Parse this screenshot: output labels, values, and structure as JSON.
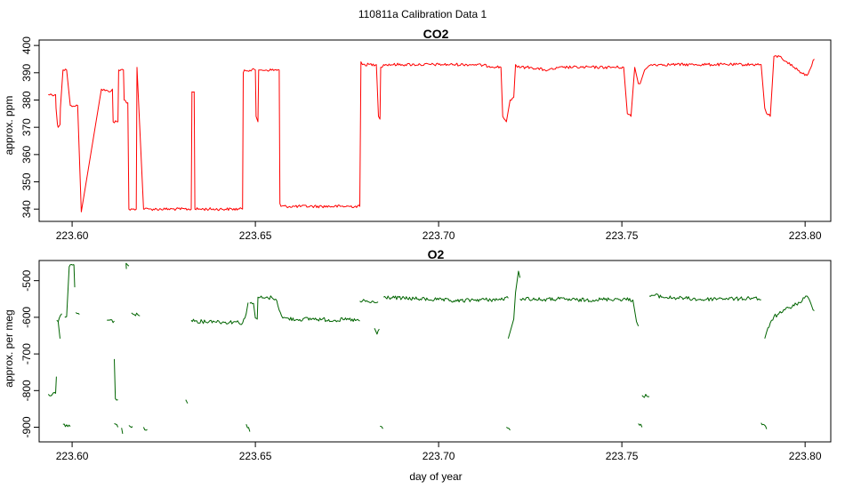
{
  "title": "110811a   Calibration Data 1",
  "chart_data": [
    {
      "type": "line",
      "title": "CO2",
      "xlabel": "",
      "ylabel": "approx. ppm",
      "xlim": [
        223.591,
        223.807
      ],
      "ylim": [
        335.5,
        402
      ],
      "xticks": [
        223.6,
        223.65,
        223.7,
        223.75,
        223.8
      ],
      "xtick_labels": [
        "223.60",
        "223.65",
        "223.70",
        "223.75",
        "223.80"
      ],
      "yticks": [
        340,
        350,
        360,
        370,
        380,
        390,
        400
      ],
      "ytick_labels": [
        "340",
        "350",
        "360",
        "370",
        "380",
        "390",
        "400"
      ],
      "grid": false,
      "legend": "none",
      "color": "#ff0000",
      "series": [
        {
          "x": [
            223.5935,
            223.5955,
            223.5956,
            223.596,
            223.5962,
            223.5967,
            223.5968,
            223.5975,
            223.5976,
            223.5985,
            223.5995,
            223.5997,
            223.6015,
            223.6025,
            223.608,
            223.61,
            223.611,
            223.6112,
            223.6125,
            223.6127,
            223.614,
            223.6142,
            223.6152,
            223.6155,
            223.6165,
            223.6175,
            223.6177,
            223.6195,
            223.6197,
            223.621,
            223.6325,
            223.6327,
            223.6333,
            223.6335,
            223.6465,
            223.6467,
            223.647,
            223.65,
            223.6502,
            223.6507,
            223.6509,
            223.6515,
            223.6517,
            223.6565,
            223.6567,
            223.657,
            223.6785,
            223.6788,
            223.6792,
            223.683,
            223.6832,
            223.6836,
            223.684,
            223.6842,
            223.685,
            223.69,
            223.695,
            223.7,
            223.71,
            223.717,
            223.7175,
            223.7185,
            223.7195,
            223.7205,
            223.721,
            223.7215,
            223.7225,
            223.725,
            223.729,
            223.73,
            223.734,
            223.74,
            223.7505,
            223.7515,
            223.7525,
            223.7535,
            223.7545,
            223.755,
            223.7562,
            223.757,
            223.758,
            223.76,
            223.765,
            223.77,
            223.78,
            223.788,
            223.789,
            223.7895,
            223.7905,
            223.791,
            223.7915,
            223.793,
            223.795,
            223.797,
            223.799,
            223.8005,
            223.8025
          ],
          "y": [
            382,
            382,
            377,
            371,
            370,
            371,
            377,
            391,
            391,
            391,
            378,
            378,
            378,
            339,
            384,
            383,
            384,
            372,
            372,
            391,
            391,
            380,
            379,
            340,
            340,
            340,
            392,
            340,
            340,
            340,
            340,
            383,
            383,
            340,
            340,
            390,
            391,
            391,
            374,
            372,
            391,
            391,
            391,
            391,
            342,
            341,
            341,
            394,
            393,
            393,
            387,
            374,
            373,
            392,
            393,
            393,
            393,
            393,
            393,
            392,
            374,
            372,
            380,
            381,
            393,
            392,
            392,
            392,
            391,
            391,
            392,
            392,
            392,
            375,
            374,
            392,
            386,
            386,
            391,
            392,
            393,
            393,
            393,
            393,
            393,
            393,
            377,
            375,
            374,
            385,
            396,
            396,
            394,
            392,
            390,
            389,
            395
          ]
        }
      ]
    },
    {
      "type": "line",
      "title": "O2",
      "xlabel": "day of year",
      "ylabel": "approx. per meg",
      "xlim": [
        223.591,
        223.807
      ],
      "ylim": [
        -940,
        -445
      ],
      "xticks": [
        223.6,
        223.65,
        223.7,
        223.75,
        223.8
      ],
      "xtick_labels": [
        "223.60",
        "223.65",
        "223.70",
        "223.75",
        "223.80"
      ],
      "yticks": [
        -900,
        -800,
        -700,
        -600,
        -500
      ],
      "ytick_labels": [
        "-900",
        "-800",
        "-700",
        "-600",
        "-500"
      ],
      "grid": false,
      "legend": "none",
      "color": "#006400",
      "segments": [
        {
          "x": [
            223.5935,
            223.5955
          ],
          "y": [
            -810,
            -808
          ]
        },
        {
          "x": [
            223.5955,
            223.5957
          ],
          "y": [
            -808,
            -762
          ]
        },
        {
          "x": [
            223.5958,
            223.5962,
            223.5967
          ],
          "y": [
            -608,
            -612,
            -658
          ]
        },
        {
          "x": [
            223.5962,
            223.5972
          ],
          "y": [
            -612,
            -590
          ]
        },
        {
          "x": [
            223.5975,
            223.5995
          ],
          "y": [
            -892,
            -898
          ]
        },
        {
          "x": [
            223.598,
            223.5985,
            223.5992,
            223.5998,
            223.6005
          ],
          "y": [
            -600,
            -598,
            -462,
            -456,
            -456
          ]
        },
        {
          "x": [
            223.6005,
            223.6007
          ],
          "y": [
            -456,
            -518
          ]
        },
        {
          "x": [
            223.601,
            223.602
          ],
          "y": [
            -587,
            -592
          ]
        },
        {
          "x": [
            223.6095,
            223.6115
          ],
          "y": [
            -608,
            -610
          ]
        },
        {
          "x": [
            223.6115,
            223.6118,
            223.6125
          ],
          "y": [
            -714,
            -822,
            -825
          ]
        },
        {
          "x": [
            223.6115,
            223.6125
          ],
          "y": [
            -890,
            -900
          ]
        },
        {
          "x": [
            223.6135,
            223.6138
          ],
          "y": [
            -902,
            -918
          ]
        },
        {
          "x": [
            223.6147,
            223.615,
            223.6155
          ],
          "y": [
            -452,
            -456,
            -460
          ]
        },
        {
          "x": [
            223.6147,
            223.6148
          ],
          "y": [
            -452,
            -468
          ]
        },
        {
          "x": [
            223.6155,
            223.6165
          ],
          "y": [
            -895,
            -898
          ]
        },
        {
          "x": [
            223.6162,
            223.6167,
            223.6185
          ],
          "y": [
            -588,
            -592,
            -596
          ]
        },
        {
          "x": [
            223.6195,
            223.6205
          ],
          "y": [
            -900,
            -906
          ]
        },
        {
          "x": [
            223.631,
            223.6315
          ],
          "y": [
            -825,
            -835
          ]
        },
        {
          "x": [
            223.6325,
            223.6355,
            223.6385,
            223.6415,
            223.6445,
            223.6465
          ],
          "y": [
            -608,
            -612,
            -610,
            -614,
            -612,
            -616
          ]
        },
        {
          "x": [
            223.6465,
            223.6475,
            223.648
          ],
          "y": [
            -616,
            -590,
            -560
          ]
        },
        {
          "x": [
            223.6475,
            223.6485
          ],
          "y": [
            -892,
            -912
          ]
        },
        {
          "x": [
            223.6485,
            223.6495,
            223.65,
            223.6505
          ],
          "y": [
            -562,
            -562,
            -602,
            -604
          ]
        },
        {
          "x": [
            223.6505,
            223.6507,
            223.6525,
            223.6545,
            223.6555
          ],
          "y": [
            -606,
            -545,
            -548,
            -546,
            -550
          ]
        },
        {
          "x": [
            223.6555,
            223.6575,
            223.6615,
            223.6655,
            223.6715,
            223.6755,
            223.6785
          ],
          "y": [
            -550,
            -602,
            -606,
            -604,
            -608,
            -606,
            -610
          ]
        },
        {
          "x": [
            223.6785,
            223.6792,
            223.681,
            223.6825,
            223.6835
          ],
          "y": [
            -556,
            -556,
            -558,
            -560,
            -558
          ]
        },
        {
          "x": [
            223.6825,
            223.6832,
            223.6838
          ],
          "y": [
            -630,
            -646,
            -632
          ]
        },
        {
          "x": [
            223.684,
            223.6848
          ],
          "y": [
            -897,
            -904
          ]
        },
        {
          "x": [
            223.685,
            223.69,
            223.695,
            223.7,
            223.705,
            223.71,
            223.716,
            223.719
          ],
          "y": [
            -545,
            -548,
            -550,
            -552,
            -556,
            -552,
            -552,
            -548
          ]
        },
        {
          "x": [
            223.7185,
            223.7195
          ],
          "y": [
            -900,
            -908
          ]
        },
        {
          "x": [
            223.719,
            223.7195,
            223.7205,
            223.721,
            223.7218,
            223.7222
          ],
          "y": [
            -658,
            -640,
            -605,
            -532,
            -474,
            -492
          ]
        },
        {
          "x": [
            223.7222,
            223.723,
            223.728,
            223.733,
            223.738,
            223.743,
            223.748,
            223.753
          ],
          "y": [
            -550,
            -548,
            -552,
            -550,
            -553,
            -552,
            -550,
            -552
          ]
        },
        {
          "x": [
            223.753,
            223.754,
            223.7545
          ],
          "y": [
            -552,
            -612,
            -624
          ]
        },
        {
          "x": [
            223.7545,
            223.7555
          ],
          "y": [
            -890,
            -900
          ]
        },
        {
          "x": [
            223.7555,
            223.7575
          ],
          "y": [
            -813,
            -816
          ]
        },
        {
          "x": [
            223.7575,
            223.759,
            223.762,
            223.767,
            223.772,
            223.777,
            223.782,
            223.786,
            223.788
          ],
          "y": [
            -542,
            -540,
            -546,
            -548,
            -552,
            -548,
            -550,
            -546,
            -552
          ]
        },
        {
          "x": [
            223.788,
            223.7895
          ],
          "y": [
            -888,
            -905
          ]
        },
        {
          "x": [
            223.789,
            223.7895,
            223.7905,
            223.7915,
            223.7935,
            223.7955,
            223.7985,
            223.8005,
            223.8025
          ],
          "y": [
            -658,
            -640,
            -615,
            -598,
            -588,
            -574,
            -560,
            -542,
            -582
          ]
        }
      ]
    }
  ]
}
